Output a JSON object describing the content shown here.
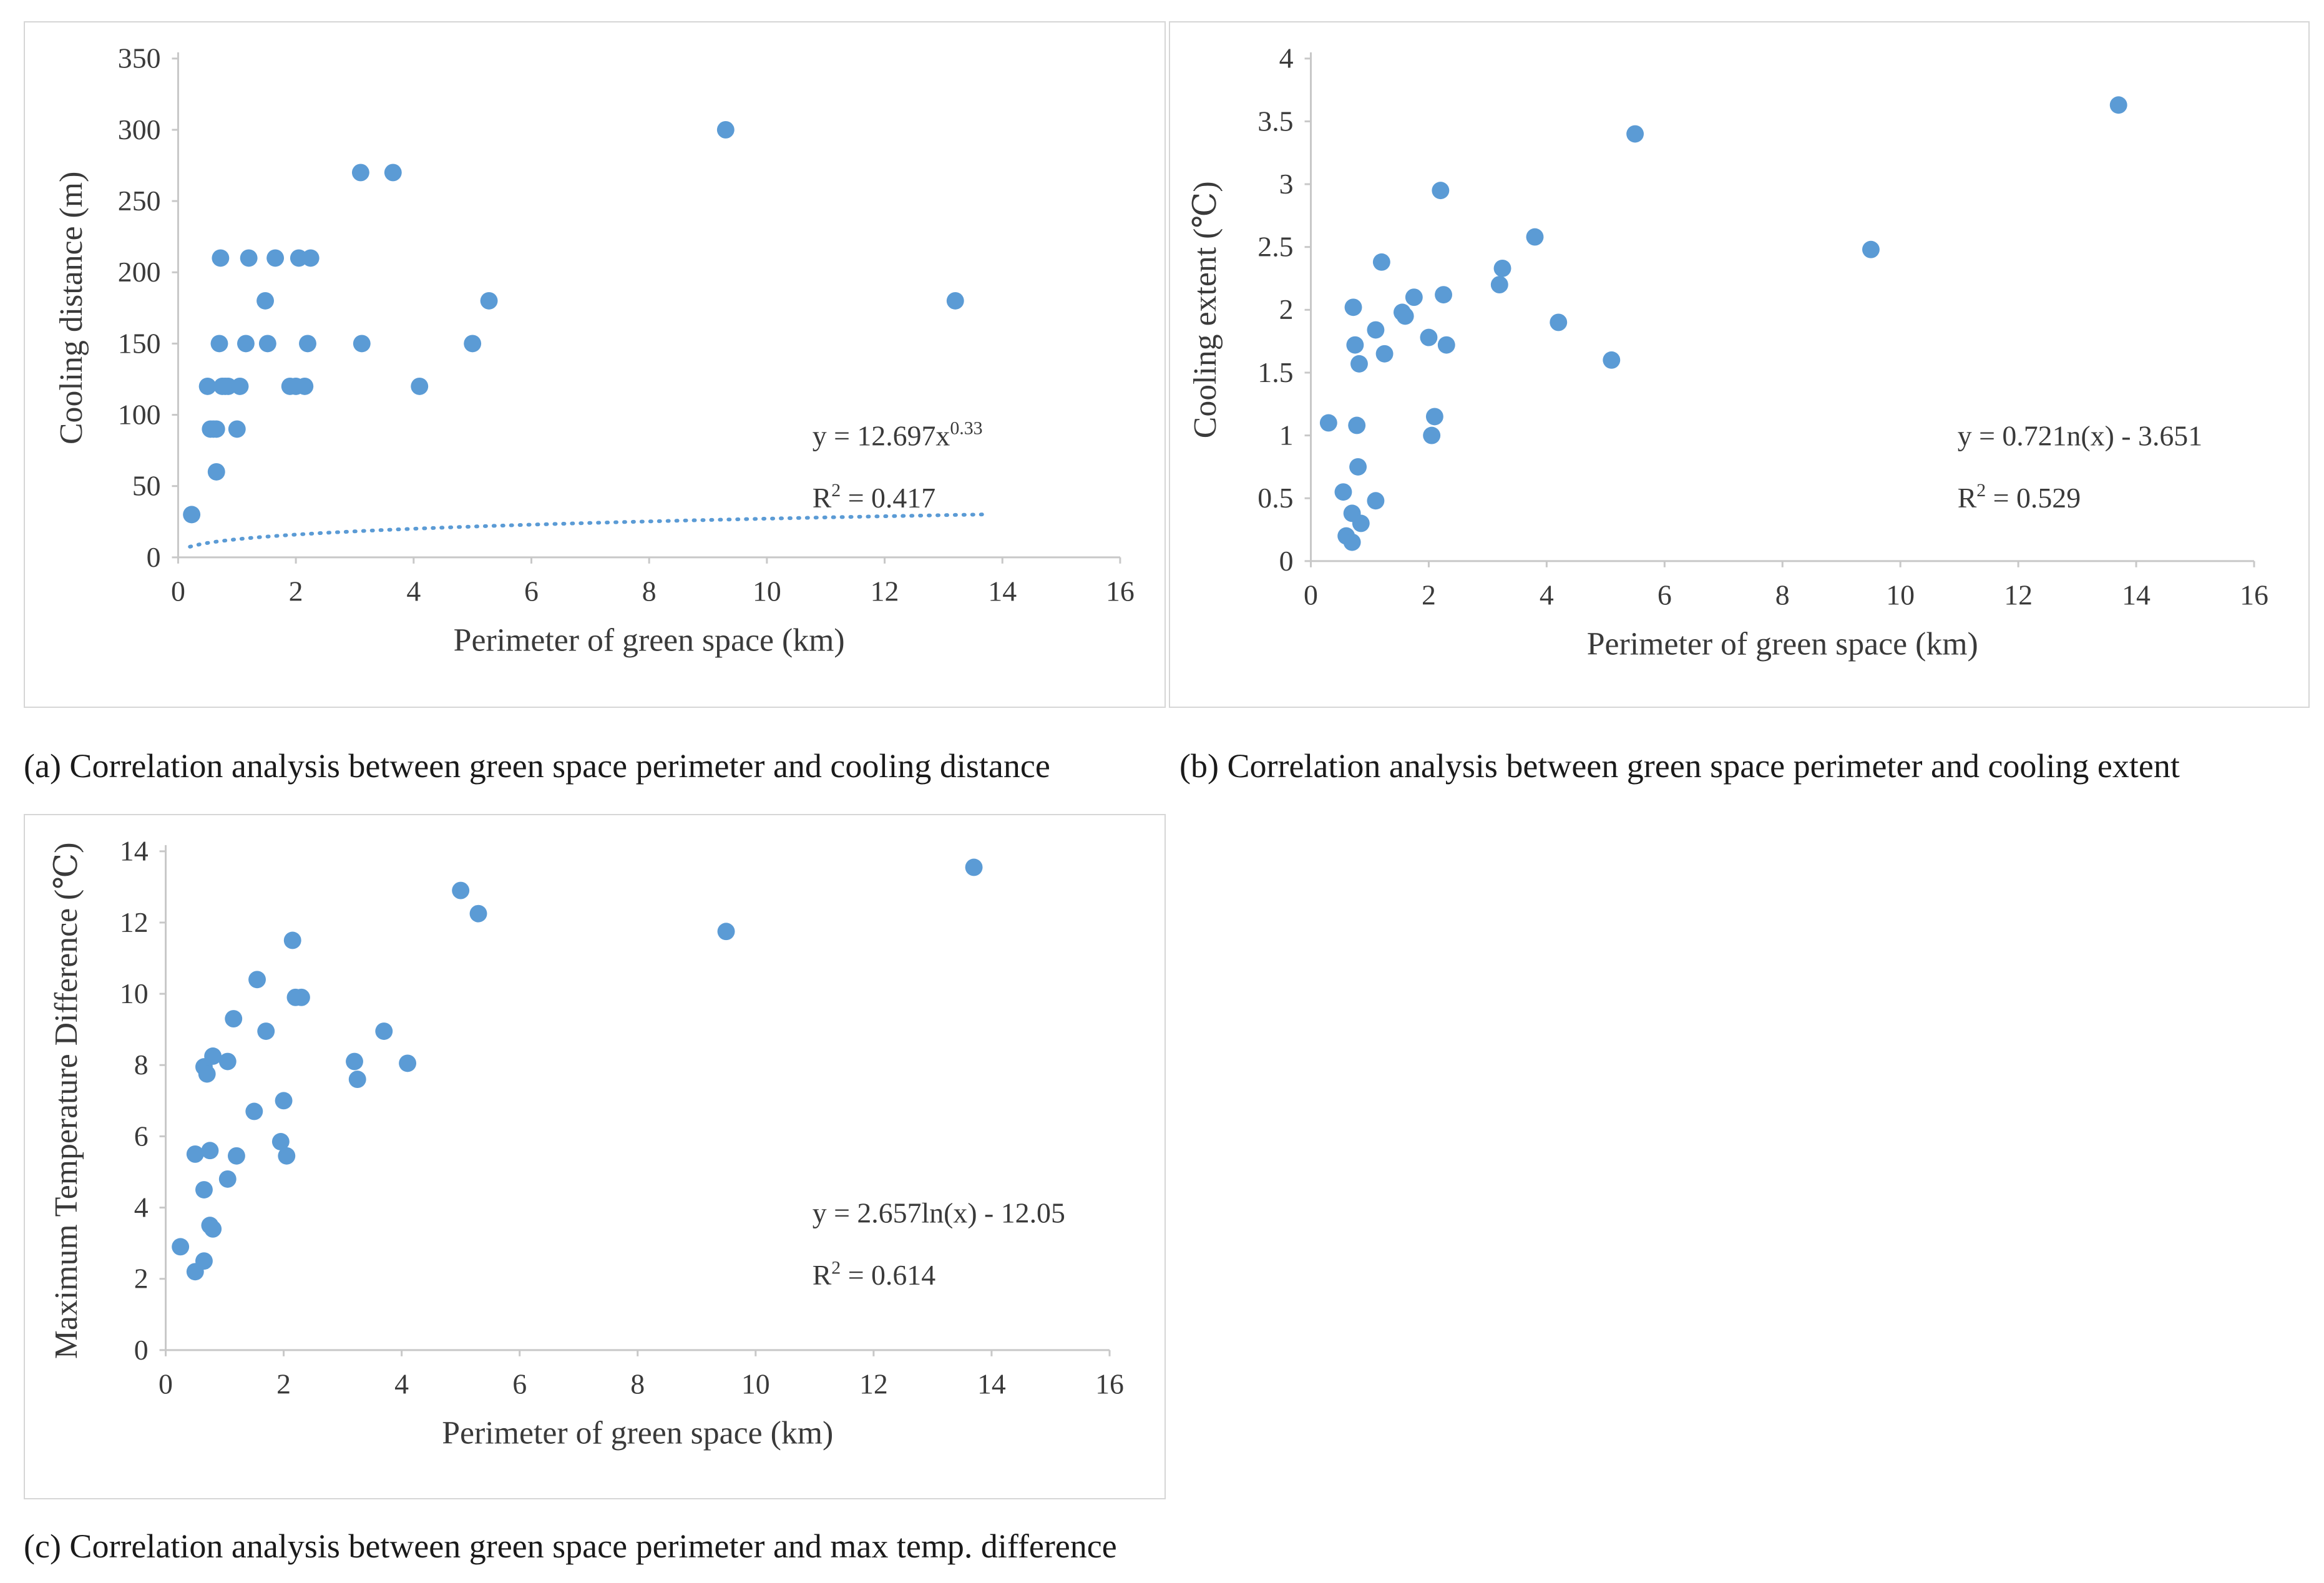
{
  "colors": {
    "point": "#5b9bd5",
    "trendline": "#5b9bd5",
    "axis": "#c8c8c8",
    "border": "#d6d6d6"
  },
  "captions": {
    "a": "(a) Correlation analysis between green space perimeter and cooling distance",
    "b": "(b) Correlation analysis between green space perimeter and  cooling extent",
    "c": "(c) Correlation analysis between green space perimeter and max temp. difference"
  },
  "chart_data": [
    {
      "id": "a",
      "type": "scatter",
      "xlabel": "Perimeter of green space (km)",
      "ylabel": "Cooling distance (m)",
      "xlim": [
        0,
        16
      ],
      "ylim": [
        0,
        350
      ],
      "xticks": [
        "0",
        "2",
        "4",
        "6",
        "8",
        "10",
        "12",
        "14",
        "16"
      ],
      "yticks": [
        "0",
        "50",
        "100",
        "150",
        "200",
        "250",
        "300",
        "350"
      ],
      "equation": {
        "base": "y = 12.697x",
        "exponent": "0.33"
      },
      "r2": {
        "prefix": "R",
        "sup": "2",
        "value": "= 0.417"
      },
      "trend": {
        "kind": "power",
        "a": 12.697,
        "b": 0.33,
        "x_from": 0.2,
        "x_to": 13.7
      },
      "points": [
        [
          0.23,
          30
        ],
        [
          0.5,
          120
        ],
        [
          0.55,
          90
        ],
        [
          0.6,
          90
        ],
        [
          0.65,
          60
        ],
        [
          0.65,
          90
        ],
        [
          0.7,
          150
        ],
        [
          0.72,
          210
        ],
        [
          0.75,
          120
        ],
        [
          0.8,
          120
        ],
        [
          0.85,
          120
        ],
        [
          1.0,
          90
        ],
        [
          1.05,
          120
        ],
        [
          1.15,
          150
        ],
        [
          1.2,
          210
        ],
        [
          1.48,
          180
        ],
        [
          1.52,
          150
        ],
        [
          1.65,
          210
        ],
        [
          1.9,
          120
        ],
        [
          2.0,
          120
        ],
        [
          2.05,
          210
        ],
        [
          2.15,
          120
        ],
        [
          2.2,
          150
        ],
        [
          2.25,
          210
        ],
        [
          3.1,
          270
        ],
        [
          3.12,
          150
        ],
        [
          3.65,
          270
        ],
        [
          4.1,
          120
        ],
        [
          5.0,
          150
        ],
        [
          5.28,
          180
        ],
        [
          9.3,
          300
        ],
        [
          13.2,
          180
        ]
      ]
    },
    {
      "id": "b",
      "type": "scatter",
      "xlabel": "Perimeter of green space (km)",
      "ylabel": "Cooling extent (℃)",
      "xlim": [
        0,
        16
      ],
      "ylim": [
        0,
        4
      ],
      "xticks": [
        "0",
        "2",
        "4",
        "6",
        "8",
        "10",
        "12",
        "14",
        "16"
      ],
      "yticks": [
        "0",
        "0.5",
        "1",
        "1.5",
        "2",
        "2.5",
        "3",
        "3.5",
        "4"
      ],
      "equation": {
        "text": "y = 0.721n(x) - 3.651"
      },
      "r2": {
        "prefix": "R",
        "sup": "2",
        "value": "= 0.529"
      },
      "trend": {
        "kind": "log",
        "a": 0.721,
        "b": -3.651,
        "x_from": 0.3,
        "x_to": 13.7
      },
      "points": [
        [
          0.3,
          1.1
        ],
        [
          0.55,
          0.55
        ],
        [
          0.6,
          0.2
        ],
        [
          0.7,
          0.15
        ],
        [
          0.7,
          0.38
        ],
        [
          0.72,
          2.02
        ],
        [
          0.75,
          1.72
        ],
        [
          0.78,
          1.08
        ],
        [
          0.8,
          0.75
        ],
        [
          0.82,
          1.57
        ],
        [
          0.85,
          0.3
        ],
        [
          1.1,
          0.48
        ],
        [
          1.1,
          1.84
        ],
        [
          1.2,
          2.38
        ],
        [
          1.25,
          1.65
        ],
        [
          1.55,
          1.98
        ],
        [
          1.6,
          1.95
        ],
        [
          1.75,
          2.1
        ],
        [
          2.0,
          1.78
        ],
        [
          2.05,
          1.0
        ],
        [
          2.1,
          1.15
        ],
        [
          2.2,
          2.95
        ],
        [
          2.25,
          2.12
        ],
        [
          2.3,
          1.72
        ],
        [
          3.2,
          2.2
        ],
        [
          3.25,
          2.33
        ],
        [
          3.8,
          2.58
        ],
        [
          4.2,
          1.9
        ],
        [
          5.1,
          1.6
        ],
        [
          5.5,
          3.4
        ],
        [
          9.5,
          2.48
        ],
        [
          13.7,
          3.63
        ]
      ]
    },
    {
      "id": "c",
      "type": "scatter",
      "xlabel": "Perimeter of green space (km)",
      "ylabel": "Maximum Temperature Difference (℃)",
      "xlim": [
        0,
        16
      ],
      "ylim": [
        0,
        14
      ],
      "xticks": [
        "0",
        "2",
        "4",
        "6",
        "8",
        "10",
        "12",
        "14",
        "16"
      ],
      "yticks": [
        "0",
        "2",
        "4",
        "6",
        "8",
        "10",
        "12",
        "14"
      ],
      "equation": {
        "text": "y = 2.657ln(x) - 12.05"
      },
      "r2": {
        "prefix": "R",
        "sup": "2",
        "value": "= 0.614"
      },
      "trend": {
        "kind": "log",
        "a": 2.657,
        "b": -12.05,
        "x_from": 0.25,
        "x_to": 13.7
      },
      "points": [
        [
          0.25,
          2.9
        ],
        [
          0.5,
          2.2
        ],
        [
          0.5,
          5.5
        ],
        [
          0.65,
          2.5
        ],
        [
          0.65,
          4.5
        ],
        [
          0.65,
          7.95
        ],
        [
          0.7,
          7.75
        ],
        [
          0.75,
          5.6
        ],
        [
          0.75,
          3.5
        ],
        [
          0.8,
          8.25
        ],
        [
          0.8,
          3.4
        ],
        [
          1.05,
          4.8
        ],
        [
          1.05,
          8.1
        ],
        [
          1.15,
          9.3
        ],
        [
          1.2,
          5.45
        ],
        [
          1.5,
          6.7
        ],
        [
          1.55,
          10.4
        ],
        [
          1.7,
          8.95
        ],
        [
          1.95,
          5.85
        ],
        [
          2.0,
          7.0
        ],
        [
          2.05,
          5.45
        ],
        [
          2.15,
          11.5
        ],
        [
          2.2,
          9.9
        ],
        [
          2.3,
          9.9
        ],
        [
          3.2,
          8.1
        ],
        [
          3.25,
          7.6
        ],
        [
          3.7,
          8.95
        ],
        [
          4.1,
          8.05
        ],
        [
          5.0,
          12.9
        ],
        [
          5.3,
          12.25
        ],
        [
          9.5,
          11.75
        ],
        [
          13.7,
          13.55
        ]
      ]
    }
  ]
}
